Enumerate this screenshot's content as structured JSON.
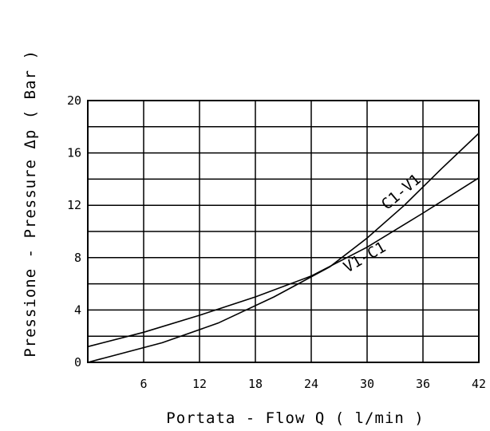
{
  "chart_data": {
    "type": "line",
    "xlabel": "Portata - Flow  Q ( l/min )",
    "ylabel": "Pressione - Pressure Δp ( Bar )",
    "xlim": [
      0,
      42
    ],
    "ylim": [
      0,
      20
    ],
    "x_ticks": [
      "6",
      "12",
      "18",
      "24",
      "30",
      "36",
      "42"
    ],
    "y_ticks": [
      "0",
      "4",
      "8",
      "12",
      "16",
      "20"
    ],
    "grid": true,
    "series": [
      {
        "name": "C1-V1",
        "x": [
          0,
          8,
          14,
          20,
          26,
          30,
          34,
          38,
          42
        ],
        "y": [
          0,
          1.5,
          3.0,
          5.0,
          7.3,
          9.5,
          12.0,
          14.8,
          17.5
        ]
      },
      {
        "name": "V1-C1",
        "x": [
          0,
          6,
          12,
          18,
          24,
          30,
          36,
          42
        ],
        "y": [
          1.2,
          2.3,
          3.6,
          5.0,
          6.6,
          8.8,
          11.4,
          14.1
        ]
      }
    ]
  }
}
